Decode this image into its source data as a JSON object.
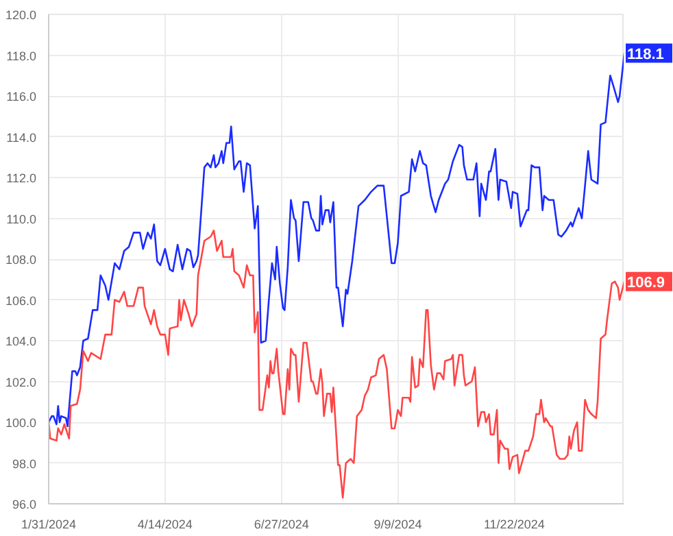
{
  "chart_data": {
    "type": "line",
    "xlim": [
      "2024-01-31",
      "2025-01-31"
    ],
    "xticks": [
      {
        "value": "2024-01-31",
        "label": "1/31/2024"
      },
      {
        "value": "2024-04-14",
        "label": "4/14/2024"
      },
      {
        "value": "2024-06-27",
        "label": "6/27/2024"
      },
      {
        "value": "2024-09-09",
        "label": "9/9/2024"
      },
      {
        "value": "2024-11-22",
        "label": "11/22/2024"
      }
    ],
    "ylim": [
      96,
      120
    ],
    "yticks": [
      {
        "value": 96,
        "label": "96.0"
      },
      {
        "value": 98,
        "label": "98.0"
      },
      {
        "value": 100,
        "label": "100.0"
      },
      {
        "value": 102,
        "label": "102.0"
      },
      {
        "value": 104,
        "label": "104.0"
      },
      {
        "value": 106,
        "label": "106.0"
      },
      {
        "value": 108,
        "label": "108.0"
      },
      {
        "value": 110,
        "label": "110.0"
      },
      {
        "value": 112,
        "label": "112.0"
      },
      {
        "value": 114,
        "label": "114.0"
      },
      {
        "value": 116,
        "label": "116.0"
      },
      {
        "value": 118,
        "label": "118.0"
      },
      {
        "value": 120,
        "label": "120.0"
      }
    ],
    "grid": true,
    "marker": "none",
    "line_style": "solid",
    "annotations": [
      {
        "text": "118.1",
        "x": "2025-01-31",
        "y": 118.1
      },
      {
        "text": "106.9",
        "x": "2025-01-31",
        "y": 106.9
      }
    ],
    "series": [
      {
        "color": "#1a2cff",
        "x": [
          "2024-01-31",
          "2024-02-02",
          "2024-02-03",
          "2024-02-05",
          "2024-02-06",
          "2024-02-07",
          "2024-02-08",
          "2024-02-11",
          "2024-02-12",
          "2024-02-15",
          "2024-02-17",
          "2024-02-18",
          "2024-02-20",
          "2024-02-22",
          "2024-02-25",
          "2024-02-28",
          "2024-03-02",
          "2024-03-04",
          "2024-03-07",
          "2024-03-09",
          "2024-03-13",
          "2024-03-16",
          "2024-03-19",
          "2024-03-22",
          "2024-03-25",
          "2024-03-29",
          "2024-03-31",
          "2024-04-03",
          "2024-04-05",
          "2024-04-07",
          "2024-04-09",
          "2024-04-11",
          "2024-04-14",
          "2024-04-17",
          "2024-04-19",
          "2024-04-22",
          "2024-04-25",
          "2024-04-28",
          "2024-04-30",
          "2024-05-02",
          "2024-05-04",
          "2024-05-05",
          "2024-05-09",
          "2024-05-11",
          "2024-05-13",
          "2024-05-15",
          "2024-05-16",
          "2024-05-18",
          "2024-05-20",
          "2024-05-21",
          "2024-05-23",
          "2024-05-25",
          "2024-05-26",
          "2024-05-28",
          "2024-05-31",
          "2024-06-01",
          "2024-06-03",
          "2024-06-05",
          "2024-06-07",
          "2024-06-10",
          "2024-06-12",
          "2024-06-14",
          "2024-06-17",
          "2024-06-19",
          "2024-06-21",
          "2024-06-23",
          "2024-06-24",
          "2024-06-26",
          "2024-06-28",
          "2024-06-29",
          "2024-07-01",
          "2024-07-03",
          "2024-07-05",
          "2024-07-06",
          "2024-07-08",
          "2024-07-11",
          "2024-07-14",
          "2024-07-16",
          "2024-07-17",
          "2024-07-19",
          "2024-07-21",
          "2024-07-22",
          "2024-07-23",
          "2024-07-25",
          "2024-07-27",
          "2024-07-28",
          "2024-07-30",
          "2024-08-01",
          "2024-08-02",
          "2024-08-05",
          "2024-08-07",
          "2024-08-08",
          "2024-08-11",
          "2024-08-15",
          "2024-08-19",
          "2024-08-23",
          "2024-08-27",
          "2024-08-31",
          "2024-09-02",
          "2024-09-05",
          "2024-09-07",
          "2024-09-09",
          "2024-09-11",
          "2024-09-16",
          "2024-09-18",
          "2024-09-20",
          "2024-09-23",
          "2024-09-25",
          "2024-09-27",
          "2024-09-30",
          "2024-10-03",
          "2024-10-05",
          "2024-10-09",
          "2024-10-11",
          "2024-10-14",
          "2024-10-18",
          "2024-10-20",
          "2024-10-21",
          "2024-10-23",
          "2024-10-27",
          "2024-10-29",
          "2024-10-31",
          "2024-11-01",
          "2024-11-04",
          "2024-11-06",
          "2024-11-07",
          "2024-11-10",
          "2024-11-12",
          "2024-11-13",
          "2024-11-17",
          "2024-11-20",
          "2024-11-21",
          "2024-11-24",
          "2024-11-26",
          "2024-11-30",
          "2024-12-01",
          "2024-12-03",
          "2024-12-05",
          "2024-12-08",
          "2024-12-10",
          "2024-12-11",
          "2024-12-14",
          "2024-12-17",
          "2024-12-20",
          "2024-12-22",
          "2024-12-25",
          "2024-12-28",
          "2024-12-29",
          "2025-01-02",
          "2025-01-04",
          "2025-01-06",
          "2025-01-08",
          "2025-01-10",
          "2025-01-14",
          "2025-01-16",
          "2025-01-19",
          "2025-01-22",
          "2025-01-24",
          "2025-01-27",
          "2025-01-28",
          "2025-01-31"
        ],
        "values": [
          100.0,
          100.3,
          100.3,
          99.9,
          100.8,
          100.0,
          100.3,
          100.2,
          99.8,
          102.5,
          102.5,
          102.3,
          102.7,
          104.0,
          104.1,
          105.5,
          105.5,
          107.2,
          106.7,
          106.0,
          107.8,
          107.5,
          108.4,
          108.6,
          109.3,
          109.3,
          108.5,
          109.3,
          109.0,
          109.7,
          107.9,
          107.7,
          108.5,
          107.5,
          107.4,
          108.7,
          107.5,
          108.5,
          108.4,
          107.6,
          107.9,
          108.2,
          112.5,
          112.7,
          112.5,
          113.1,
          112.5,
          112.7,
          113.3,
          112.7,
          113.7,
          113.7,
          114.5,
          112.4,
          112.8,
          112.8,
          111.3,
          112.7,
          112.6,
          109.5,
          110.6,
          103.9,
          104.0,
          106.0,
          107.8,
          107.0,
          108.6,
          106.8,
          105.6,
          105.5,
          107.6,
          110.9,
          110.0,
          109.9,
          107.9,
          110.8,
          110.8,
          110.0,
          109.9,
          109.4,
          109.4,
          111.1,
          109.7,
          110.4,
          110.4,
          109.8,
          110.8,
          106.6,
          106.6,
          104.7,
          106.5,
          106.3,
          107.9,
          110.6,
          110.9,
          111.3,
          111.6,
          111.6,
          110.1,
          107.8,
          107.8,
          108.8,
          111.1,
          111.3,
          112.9,
          112.3,
          113.3,
          112.7,
          112.6,
          111.1,
          110.3,
          110.9,
          111.7,
          111.9,
          112.8,
          113.6,
          113.5,
          112.6,
          111.9,
          111.9,
          112.7,
          110.1,
          111.7,
          110.9,
          112.3,
          112.3,
          113.4,
          110.9,
          111.9,
          111.8,
          110.5,
          111.3,
          111.2,
          109.6,
          110.4,
          110.4,
          112.6,
          112.5,
          112.5,
          110.4,
          111.1,
          110.9,
          110.9,
          109.2,
          109.1,
          109.4,
          109.8,
          109.6,
          110.5,
          110.0,
          111.6,
          113.3,
          111.9,
          111.7,
          114.6,
          114.7,
          117.0,
          116.5,
          115.7,
          116.0,
          118.1
        ]
      },
      {
        "color": "#ff4545",
        "x": [
          "2024-01-31",
          "2024-02-01",
          "2024-02-05",
          "2024-02-06",
          "2024-02-08",
          "2024-02-10",
          "2024-02-13",
          "2024-02-14",
          "2024-02-18",
          "2024-02-20",
          "2024-02-22",
          "2024-02-25",
          "2024-02-27",
          "2024-03-04",
          "2024-03-07",
          "2024-03-11",
          "2024-03-13",
          "2024-03-16",
          "2024-03-19",
          "2024-03-21",
          "2024-03-25",
          "2024-03-28",
          "2024-03-31",
          "2024-04-01",
          "2024-04-05",
          "2024-04-07",
          "2024-04-09",
          "2024-04-11",
          "2024-04-14",
          "2024-04-16",
          "2024-04-17",
          "2024-04-22",
          "2024-04-23",
          "2024-04-24",
          "2024-04-26",
          "2024-04-29",
          "2024-05-01",
          "2024-05-04",
          "2024-05-05",
          "2024-05-09",
          "2024-05-13",
          "2024-05-15",
          "2024-05-17",
          "2024-05-20",
          "2024-05-21",
          "2024-05-26",
          "2024-05-27",
          "2024-05-28",
          "2024-05-31",
          "2024-06-03",
          "2024-06-05",
          "2024-06-07",
          "2024-06-09",
          "2024-06-10",
          "2024-06-12",
          "2024-06-13",
          "2024-06-15",
          "2024-06-18",
          "2024-06-19",
          "2024-06-20",
          "2024-06-21",
          "2024-06-22",
          "2024-06-24",
          "2024-06-25",
          "2024-06-28",
          "2024-06-29",
          "2024-07-01",
          "2024-07-02",
          "2024-07-03",
          "2024-07-05",
          "2024-07-06",
          "2024-07-08",
          "2024-07-11",
          "2024-07-13",
          "2024-07-16",
          "2024-07-17",
          "2024-07-19",
          "2024-07-20",
          "2024-07-22",
          "2024-07-23",
          "2024-07-24",
          "2024-07-26",
          "2024-07-28",
          "2024-07-29",
          "2024-07-30",
          "2024-08-02",
          "2024-08-03",
          "2024-08-05",
          "2024-08-07",
          "2024-08-10",
          "2024-08-12",
          "2024-08-14",
          "2024-08-17",
          "2024-08-19",
          "2024-08-21",
          "2024-08-23",
          "2024-08-26",
          "2024-08-28",
          "2024-08-31",
          "2024-09-02",
          "2024-09-05",
          "2024-09-07",
          "2024-09-09",
          "2024-09-11",
          "2024-09-12",
          "2024-09-16",
          "2024-09-17",
          "2024-09-18",
          "2024-09-20",
          "2024-09-22",
          "2024-09-23",
          "2024-09-25",
          "2024-09-27",
          "2024-09-28",
          "2024-09-30",
          "2024-10-02",
          "2024-10-04",
          "2024-10-06",
          "2024-10-08",
          "2024-10-09",
          "2024-10-13",
          "2024-10-14",
          "2024-10-15",
          "2024-10-18",
          "2024-10-20",
          "2024-10-21",
          "2024-10-22",
          "2024-10-26",
          "2024-10-28",
          "2024-10-30",
          "2024-11-01",
          "2024-11-03",
          "2024-11-04",
          "2024-11-06",
          "2024-11-07",
          "2024-11-09",
          "2024-11-11",
          "2024-11-12",
          "2024-11-13",
          "2024-11-16",
          "2024-11-18",
          "2024-11-19",
          "2024-11-21",
          "2024-11-24",
          "2024-11-25",
          "2024-11-29",
          "2024-12-01",
          "2024-12-04",
          "2024-12-06",
          "2024-12-08",
          "2024-12-09",
          "2024-12-11",
          "2024-12-12",
          "2024-12-15",
          "2024-12-16",
          "2024-12-19",
          "2024-12-21",
          "2024-12-24",
          "2024-12-26",
          "2024-12-27",
          "2024-12-28",
          "2024-12-30",
          "2025-01-01",
          "2025-01-02",
          "2025-01-04",
          "2025-01-06",
          "2025-01-08",
          "2025-01-10",
          "2025-01-13",
          "2025-01-14",
          "2025-01-16",
          "2025-01-19",
          "2025-01-20",
          "2025-01-23",
          "2025-01-25",
          "2025-01-27",
          "2025-01-28",
          "2025-01-31"
        ],
        "values": [
          100.0,
          99.2,
          99.1,
          99.7,
          99.4,
          99.9,
          99.2,
          100.8,
          100.9,
          101.6,
          103.5,
          103.0,
          103.4,
          103.1,
          104.3,
          104.3,
          106.0,
          105.9,
          106.4,
          105.7,
          105.7,
          106.6,
          106.6,
          105.7,
          104.8,
          105.5,
          104.7,
          104.3,
          104.3,
          103.3,
          104.6,
          104.7,
          106.0,
          105.0,
          106.0,
          105.3,
          104.7,
          105.3,
          107.2,
          108.9,
          109.1,
          109.4,
          108.4,
          108.9,
          108.1,
          108.1,
          108.5,
          107.4,
          107.2,
          106.6,
          107.7,
          107.2,
          107.2,
          104.4,
          105.4,
          100.6,
          100.6,
          102.3,
          101.7,
          103.0,
          102.4,
          102.4,
          103.6,
          102.5,
          100.4,
          100.4,
          102.6,
          101.6,
          103.6,
          103.3,
          103.3,
          101.0,
          103.9,
          103.9,
          102.0,
          102.0,
          101.4,
          101.4,
          102.6,
          101.9,
          100.3,
          101.4,
          101.4,
          100.5,
          101.7,
          97.9,
          97.9,
          96.3,
          98.0,
          98.2,
          98.0,
          100.3,
          100.6,
          101.3,
          101.6,
          102.2,
          102.3,
          103.1,
          103.3,
          102.6,
          99.7,
          99.7,
          100.6,
          100.3,
          101.2,
          101.2,
          101.0,
          103.2,
          101.7,
          101.8,
          103.1,
          102.7,
          105.5,
          105.5,
          102.8,
          101.6,
          102.4,
          102.4,
          102.1,
          103.0,
          103.1,
          103.3,
          101.8,
          103.3,
          103.3,
          102.3,
          101.8,
          102.0,
          102.7,
          99.8,
          100.5,
          100.5,
          100.0,
          100.4,
          99.4,
          99.4,
          100.6,
          98.0,
          99.1,
          98.7,
          98.7,
          97.7,
          98.3,
          98.4,
          97.5,
          98.6,
          98.6,
          99.3,
          100.4,
          100.4,
          101.1,
          100.0,
          100.2,
          99.8,
          99.8,
          98.4,
          98.2,
          98.2,
          98.4,
          99.3,
          98.7,
          99.6,
          100.0,
          98.6,
          98.6,
          101.1,
          100.6,
          100.4,
          100.2,
          101.0,
          104.1,
          104.3,
          105.0,
          106.8,
          106.9,
          106.6,
          106.0,
          106.9
        ]
      }
    ]
  }
}
